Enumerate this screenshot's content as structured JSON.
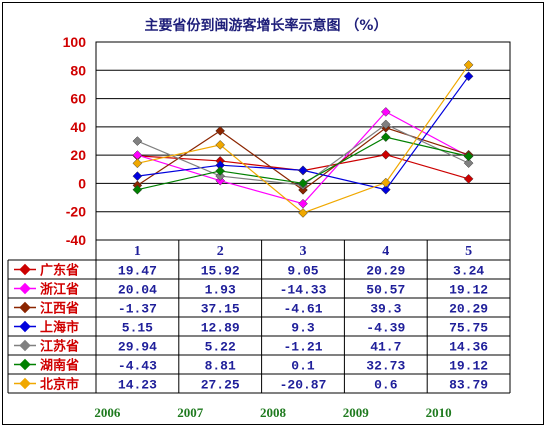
{
  "chart_data": {
    "type": "line",
    "title": "主要省份到闽游客增长率示意图 （%）",
    "categories": [
      "1",
      "2",
      "3",
      "4",
      "5"
    ],
    "years": [
      "2006",
      "2007",
      "2008",
      "2009",
      "2010"
    ],
    "ylim": [
      -40,
      100
    ],
    "yticks": [
      -40,
      -20,
      0,
      20,
      40,
      60,
      80,
      100
    ],
    "grid": true,
    "legend_placement": "data-table",
    "series": [
      {
        "name": "广东省",
        "color": "#cc0000",
        "marker": "diamond",
        "values": [
          19.47,
          15.92,
          9.05,
          20.29,
          3.24
        ],
        "labels": [
          "19.47",
          "15.92",
          "9.05",
          "20.29",
          "3.24"
        ]
      },
      {
        "name": "浙江省",
        "color": "#ff00ff",
        "marker": "diamond",
        "values": [
          20.04,
          1.93,
          -14.33,
          50.57,
          19.12
        ],
        "labels": [
          "20.04",
          "1.93",
          "-14.33",
          "50.57",
          "19.12"
        ]
      },
      {
        "name": "江西省",
        "color": "#8b2500",
        "marker": "diamond",
        "values": [
          -1.37,
          37.15,
          -4.61,
          39.3,
          20.29
        ],
        "labels": [
          "-1.37",
          "37.15",
          "-4.61",
          "39.3",
          "20.29"
        ]
      },
      {
        "name": "上海市",
        "color": "#0000dd",
        "marker": "diamond",
        "values": [
          5.15,
          12.89,
          9.3,
          -4.39,
          75.75
        ],
        "labels": [
          "5.15",
          "12.89",
          "9.3",
          "-4.39",
          "75.75"
        ]
      },
      {
        "name": "江苏省",
        "color": "#808080",
        "marker": "diamond",
        "values": [
          29.94,
          5.22,
          -1.21,
          41.7,
          14.36
        ],
        "labels": [
          "29.94",
          "5.22",
          "-1.21",
          "41.7",
          "14.36"
        ]
      },
      {
        "name": "湖南省",
        "color": "#008000",
        "marker": "diamond",
        "values": [
          -4.43,
          8.81,
          0.1,
          32.73,
          19.12
        ],
        "labels": [
          "-4.43",
          "8.81",
          "0.1",
          "32.73",
          "19.12"
        ]
      },
      {
        "name": "北京市",
        "color": "#f0a800",
        "marker": "diamond",
        "values": [
          14.23,
          27.25,
          -20.87,
          0.6,
          83.79
        ],
        "labels": [
          "14.23",
          "27.25",
          "-20.87",
          "0.6",
          "83.79"
        ]
      }
    ]
  }
}
